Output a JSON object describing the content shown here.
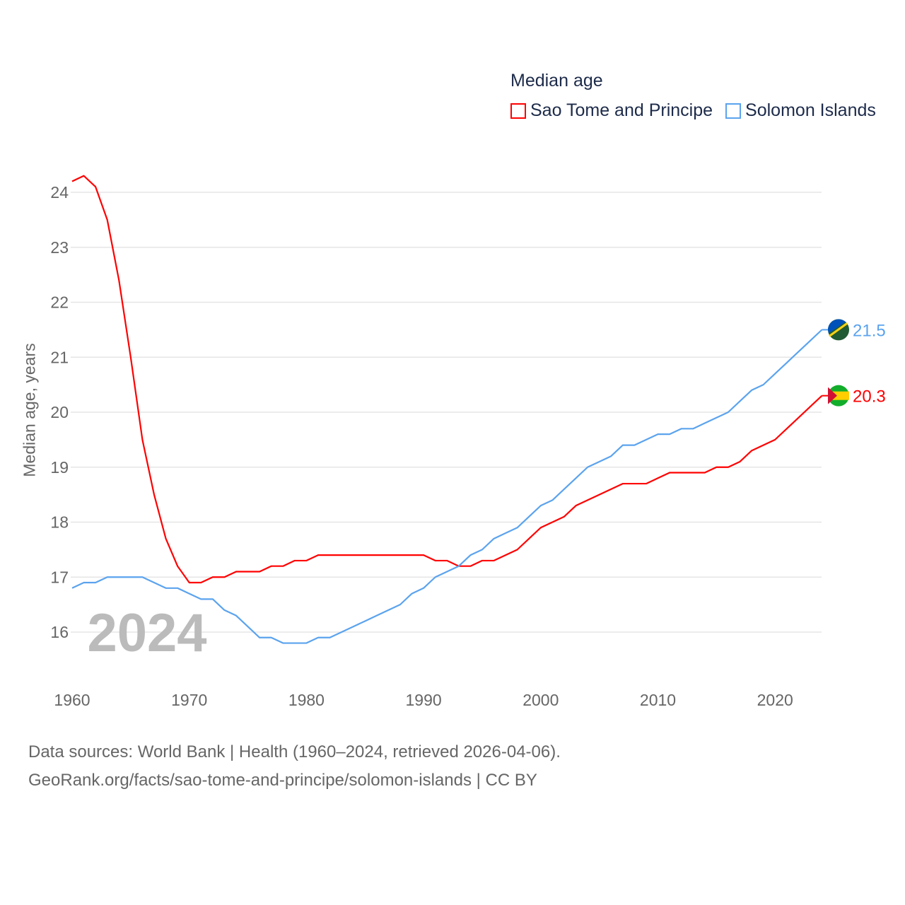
{
  "chart_data": {
    "type": "line",
    "title": "Median age",
    "xlabel": "",
    "ylabel": "Median age, years",
    "xlim": [
      1960,
      2024
    ],
    "ylim": [
      15.4,
      24.4
    ],
    "xticks": [
      1960,
      1970,
      1980,
      1990,
      2000,
      2010,
      2020
    ],
    "yticks": [
      16,
      17,
      18,
      19,
      20,
      21,
      22,
      23,
      24
    ],
    "grid": true,
    "legend_position": "top-right",
    "year_label": "2024",
    "x": [
      1960,
      1961,
      1962,
      1963,
      1964,
      1965,
      1966,
      1967,
      1968,
      1969,
      1970,
      1971,
      1972,
      1973,
      1974,
      1975,
      1976,
      1977,
      1978,
      1979,
      1980,
      1981,
      1982,
      1983,
      1984,
      1985,
      1986,
      1987,
      1988,
      1989,
      1990,
      1991,
      1992,
      1993,
      1994,
      1995,
      1996,
      1997,
      1998,
      1999,
      2000,
      2001,
      2002,
      2003,
      2004,
      2005,
      2006,
      2007,
      2008,
      2009,
      2010,
      2011,
      2012,
      2013,
      2014,
      2015,
      2016,
      2017,
      2018,
      2019,
      2020,
      2021,
      2022,
      2023,
      2024
    ],
    "series": [
      {
        "name": "Sao Tome and Principe",
        "color": "#ff0000",
        "end_label": "20.3",
        "values": [
          24.2,
          24.3,
          24.1,
          23.5,
          22.4,
          21.0,
          19.5,
          18.5,
          17.7,
          17.2,
          16.9,
          16.9,
          17.0,
          17.0,
          17.1,
          17.1,
          17.1,
          17.2,
          17.2,
          17.3,
          17.3,
          17.4,
          17.4,
          17.4,
          17.4,
          17.4,
          17.4,
          17.4,
          17.4,
          17.4,
          17.4,
          17.3,
          17.3,
          17.2,
          17.2,
          17.3,
          17.3,
          17.4,
          17.5,
          17.7,
          17.9,
          18.0,
          18.1,
          18.3,
          18.4,
          18.5,
          18.6,
          18.7,
          18.7,
          18.7,
          18.8,
          18.9,
          18.9,
          18.9,
          18.9,
          19.0,
          19.0,
          19.1,
          19.3,
          19.4,
          19.5,
          19.7,
          19.9,
          20.1,
          20.3
        ]
      },
      {
        "name": "Solomon Islands",
        "color": "#5ba3ee",
        "end_label": "21.5",
        "values": [
          16.8,
          16.9,
          16.9,
          17.0,
          17.0,
          17.0,
          17.0,
          16.9,
          16.8,
          16.8,
          16.7,
          16.6,
          16.6,
          16.4,
          16.3,
          16.1,
          15.9,
          15.9,
          15.8,
          15.8,
          15.8,
          15.9,
          15.9,
          16.0,
          16.1,
          16.2,
          16.3,
          16.4,
          16.5,
          16.7,
          16.8,
          17.0,
          17.1,
          17.2,
          17.4,
          17.5,
          17.7,
          17.8,
          17.9,
          18.1,
          18.3,
          18.4,
          18.6,
          18.8,
          19.0,
          19.1,
          19.2,
          19.4,
          19.4,
          19.5,
          19.6,
          19.6,
          19.7,
          19.7,
          19.8,
          19.9,
          20.0,
          20.2,
          20.4,
          20.5,
          20.7,
          20.9,
          21.1,
          21.3,
          21.5
        ]
      }
    ]
  },
  "source": {
    "line1": "Data sources: World Bank | Health (1960–2024, retrieved 2026-04-06).",
    "line2": "GeoRank.org/facts/sao-tome-and-principe/solomon-islands | CC BY"
  }
}
